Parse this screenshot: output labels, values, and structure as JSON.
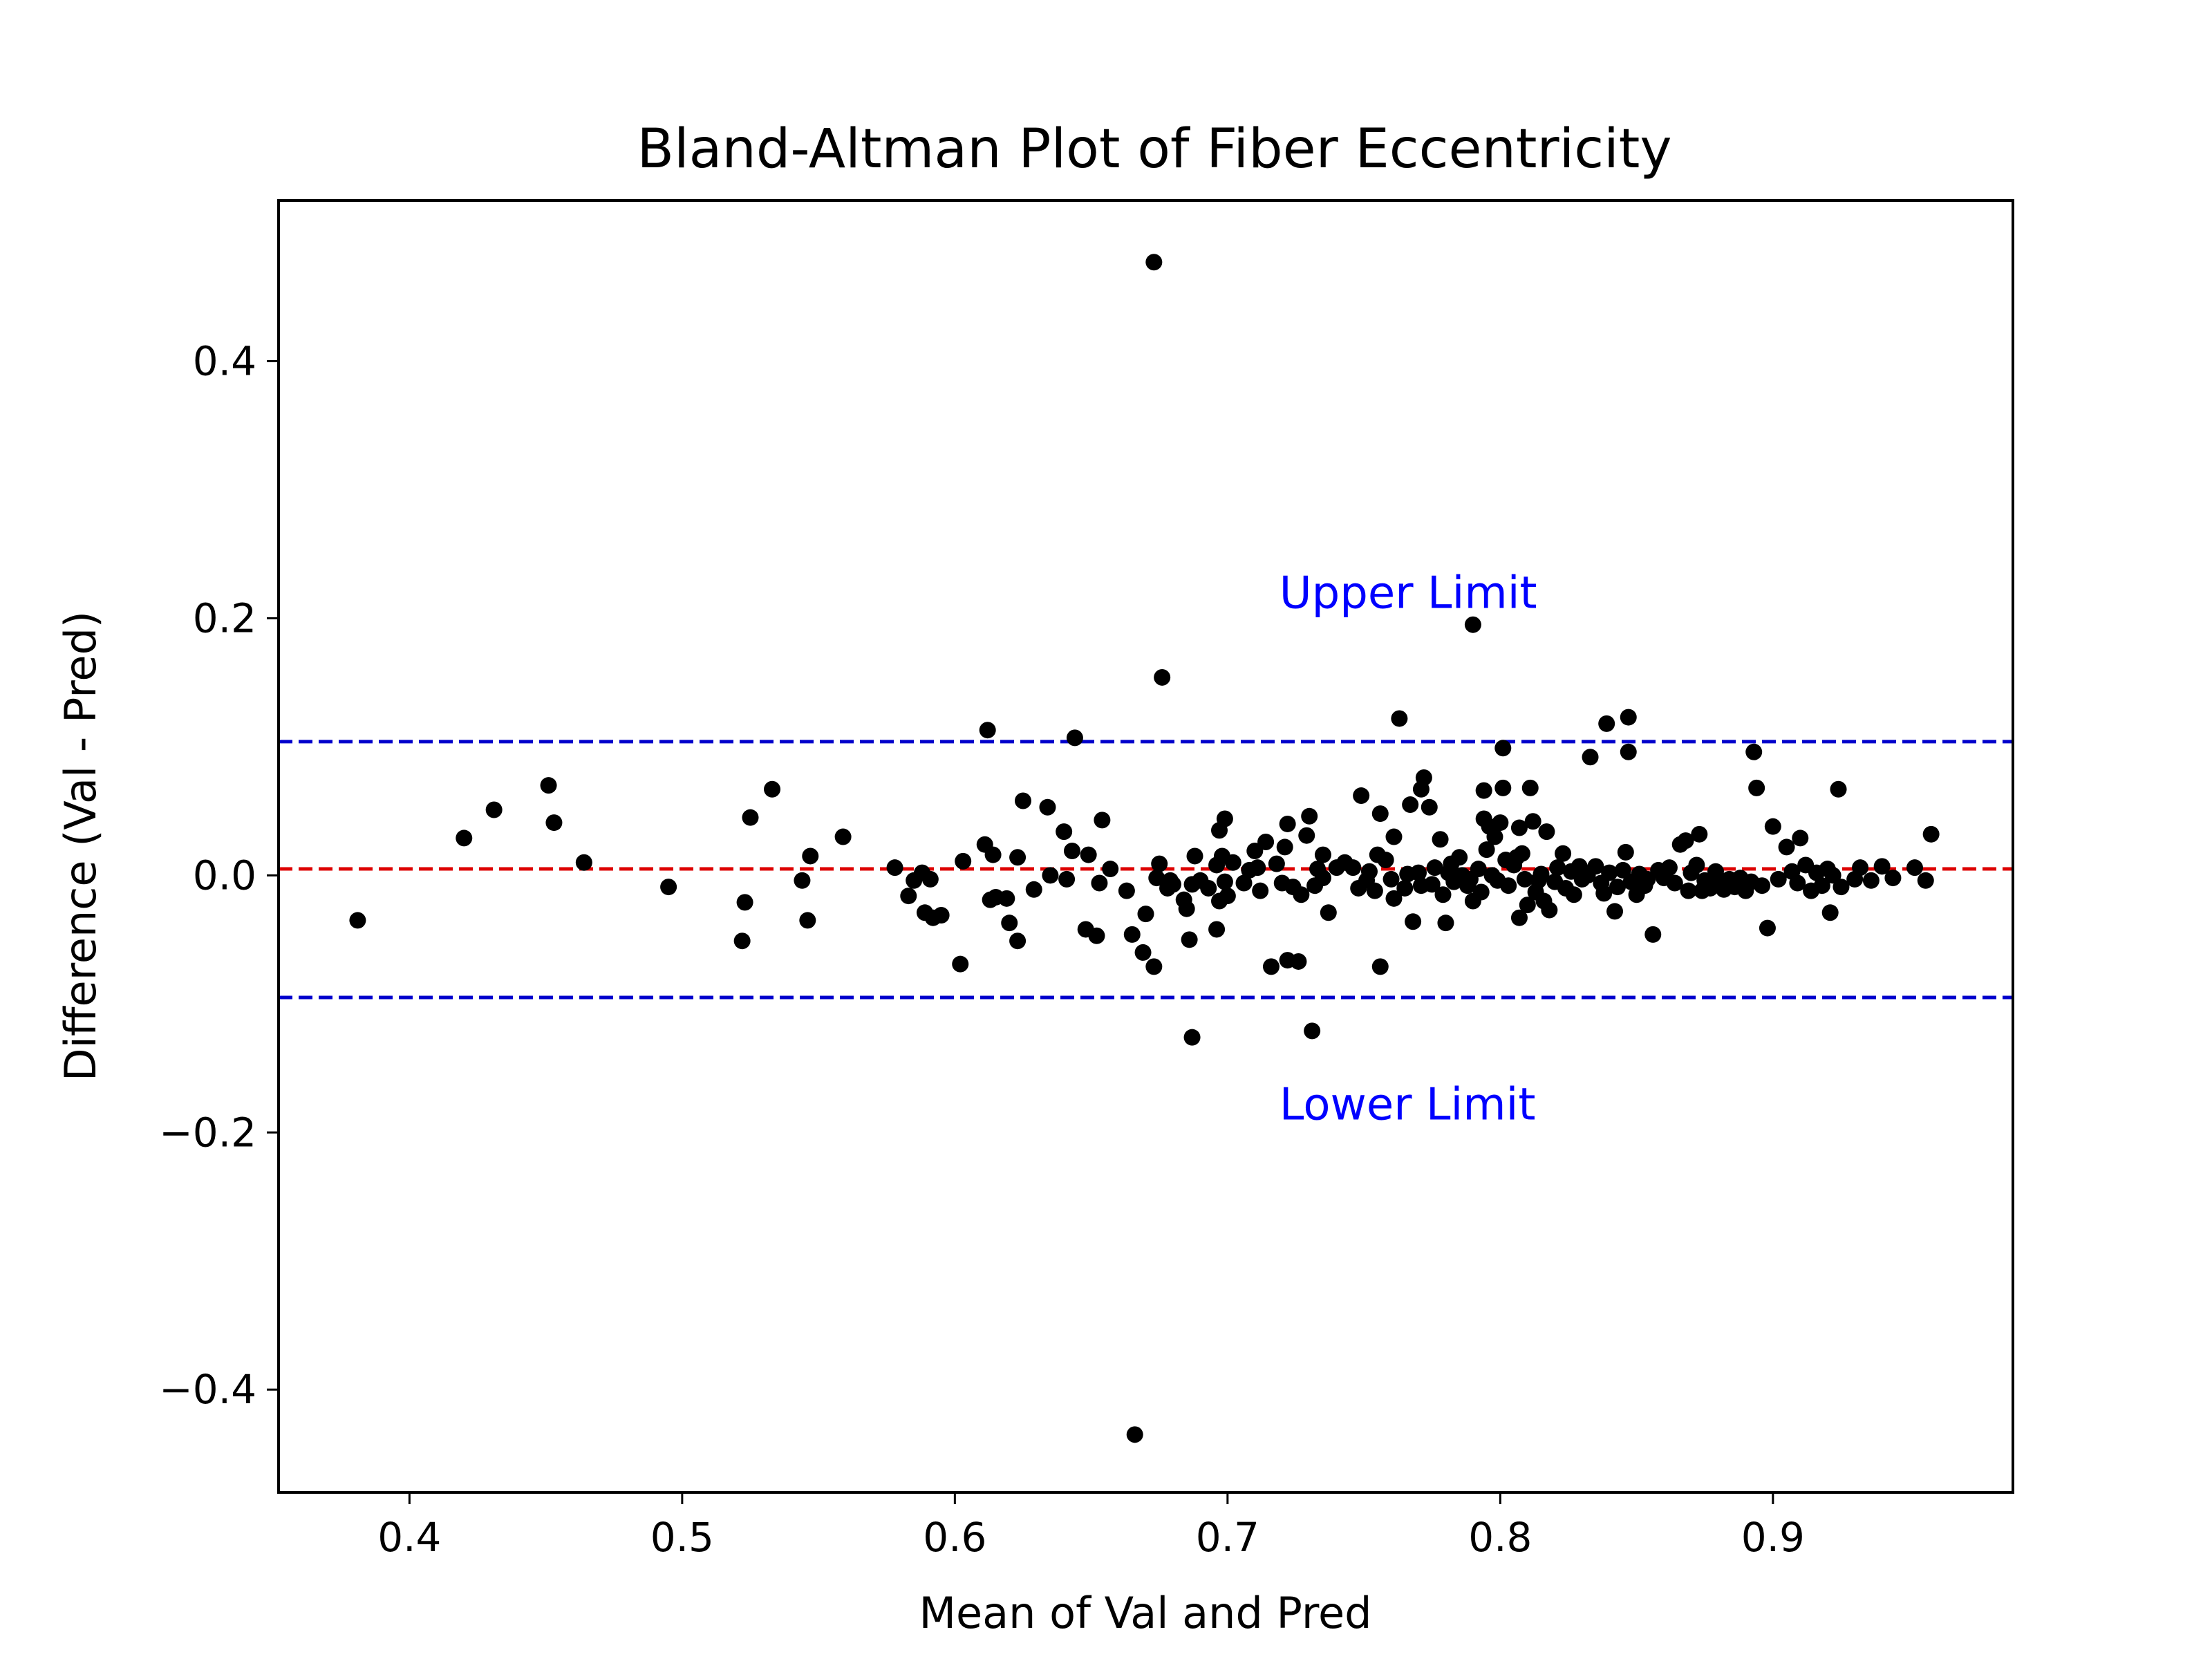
{
  "chart_data": {
    "type": "scatter",
    "title": "Bland-Altman Plot of Fiber Eccentricity",
    "xlabel": "Mean of Val and Pred",
    "ylabel": "Difference (Val - Pred)",
    "xlim": [
      0.352,
      0.988
    ],
    "ylim": [
      -0.48,
      0.525
    ],
    "xticks": [
      0.4,
      0.5,
      0.6,
      0.7,
      0.8,
      0.9
    ],
    "xtick_labels": [
      "0.4",
      "0.5",
      "0.6",
      "0.7",
      "0.8",
      "0.9"
    ],
    "yticks": [
      -0.4,
      -0.2,
      0.0,
      0.2,
      0.4
    ],
    "ytick_labels": [
      "−0.4",
      "−0.2",
      "0.0",
      "0.2",
      "0.4"
    ],
    "grid": false,
    "legend": "none",
    "reference_lines": [
      {
        "label": "Upper Limit",
        "y": 0.104,
        "color": "#0000cc",
        "style": "dashed"
      },
      {
        "label": "",
        "y": 0.005,
        "color": "#dd0000",
        "style": "dashed"
      },
      {
        "label": "Lower Limit",
        "y": -0.095,
        "color": "#0000cc",
        "style": "dashed"
      }
    ],
    "annotations": [
      {
        "text": "Upper Limit",
        "x": 0.719,
        "y": 0.208,
        "color": "#0000ff"
      },
      {
        "text": "Lower Limit",
        "x": 0.719,
        "y": -0.19,
        "color": "#0000ff"
      }
    ],
    "point_color": "#000000",
    "series": [
      {
        "points": [
          [
            0.381,
            -0.035
          ],
          [
            0.42,
            0.029
          ],
          [
            0.431,
            0.051
          ],
          [
            0.451,
            0.07
          ],
          [
            0.453,
            0.041
          ],
          [
            0.464,
            0.01
          ],
          [
            0.495,
            -0.009
          ],
          [
            0.522,
            -0.051
          ],
          [
            0.523,
            -0.021
          ],
          [
            0.525,
            0.045
          ],
          [
            0.533,
            0.067
          ],
          [
            0.544,
            -0.004
          ],
          [
            0.546,
            -0.035
          ],
          [
            0.547,
            0.015
          ],
          [
            0.559,
            0.03
          ],
          [
            0.578,
            0.006
          ],
          [
            0.583,
            -0.016
          ],
          [
            0.585,
            -0.004
          ],
          [
            0.588,
            0.002
          ],
          [
            0.589,
            -0.029
          ],
          [
            0.591,
            -0.003
          ],
          [
            0.592,
            -0.033
          ],
          [
            0.595,
            -0.031
          ],
          [
            0.602,
            -0.069
          ],
          [
            0.603,
            0.011
          ],
          [
            0.611,
            0.024
          ],
          [
            0.612,
            0.113
          ],
          [
            0.613,
            -0.019
          ],
          [
            0.614,
            0.016
          ],
          [
            0.615,
            -0.017
          ],
          [
            0.619,
            -0.018
          ],
          [
            0.62,
            -0.037
          ],
          [
            0.623,
            -0.051
          ],
          [
            0.623,
            0.014
          ],
          [
            0.625,
            0.058
          ],
          [
            0.629,
            -0.011
          ],
          [
            0.634,
            0.053
          ],
          [
            0.635,
            0.0
          ],
          [
            0.64,
            0.034
          ],
          [
            0.641,
            -0.003
          ],
          [
            0.643,
            0.019
          ],
          [
            0.644,
            0.107
          ],
          [
            0.648,
            -0.042
          ],
          [
            0.649,
            0.016
          ],
          [
            0.652,
            -0.047
          ],
          [
            0.653,
            -0.006
          ],
          [
            0.654,
            0.043
          ],
          [
            0.657,
            0.005
          ],
          [
            0.663,
            -0.012
          ],
          [
            0.665,
            -0.046
          ],
          [
            0.666,
            -0.435
          ],
          [
            0.669,
            -0.06
          ],
          [
            0.67,
            -0.03
          ],
          [
            0.673,
            -0.071
          ],
          [
            0.673,
            0.477
          ],
          [
            0.674,
            -0.002
          ],
          [
            0.675,
            0.009
          ],
          [
            0.676,
            0.154
          ],
          [
            0.678,
            -0.01
          ],
          [
            0.679,
            -0.004
          ],
          [
            0.68,
            -0.007
          ],
          [
            0.684,
            -0.019
          ],
          [
            0.685,
            -0.026
          ],
          [
            0.686,
            -0.05
          ],
          [
            0.687,
            -0.007
          ],
          [
            0.687,
            -0.126
          ],
          [
            0.688,
            0.015
          ],
          [
            0.69,
            -0.004
          ],
          [
            0.693,
            -0.01
          ],
          [
            0.696,
            0.008
          ],
          [
            0.696,
            -0.042
          ],
          [
            0.697,
            0.035
          ],
          [
            0.697,
            -0.02
          ],
          [
            0.698,
            0.015
          ],
          [
            0.699,
            -0.005
          ],
          [
            0.699,
            0.044
          ],
          [
            0.7,
            -0.016
          ],
          [
            0.702,
            0.01
          ],
          [
            0.706,
            -0.006
          ],
          [
            0.708,
            0.004
          ],
          [
            0.71,
            0.019
          ],
          [
            0.711,
            0.006
          ],
          [
            0.712,
            -0.012
          ],
          [
            0.714,
            0.026
          ],
          [
            0.716,
            -0.071
          ],
          [
            0.718,
            0.009
          ],
          [
            0.72,
            -0.006
          ],
          [
            0.721,
            0.022
          ],
          [
            0.722,
            -0.066
          ],
          [
            0.722,
            0.04
          ],
          [
            0.724,
            -0.009
          ],
          [
            0.726,
            -0.067
          ],
          [
            0.727,
            -0.015
          ],
          [
            0.729,
            0.031
          ],
          [
            0.73,
            0.046
          ],
          [
            0.731,
            -0.121
          ],
          [
            0.732,
            -0.008
          ],
          [
            0.733,
            0.005
          ],
          [
            0.735,
            -0.002
          ],
          [
            0.735,
            0.016
          ],
          [
            0.737,
            -0.029
          ],
          [
            0.74,
            0.006
          ],
          [
            0.743,
            0.01
          ],
          [
            0.746,
            0.006
          ],
          [
            0.748,
            -0.01
          ],
          [
            0.749,
            0.062
          ],
          [
            0.751,
            -0.004
          ],
          [
            0.752,
            0.003
          ],
          [
            0.754,
            -0.012
          ],
          [
            0.755,
            0.016
          ],
          [
            0.756,
            -0.071
          ],
          [
            0.756,
            0.048
          ],
          [
            0.758,
            0.012
          ],
          [
            0.76,
            -0.003
          ],
          [
            0.761,
            0.03
          ],
          [
            0.761,
            -0.018
          ],
          [
            0.763,
            0.122
          ],
          [
            0.765,
            -0.01
          ],
          [
            0.766,
            0.001
          ],
          [
            0.767,
            0.055
          ],
          [
            0.768,
            -0.036
          ],
          [
            0.77,
            0.002
          ],
          [
            0.771,
            -0.008
          ],
          [
            0.771,
            0.067
          ],
          [
            0.772,
            0.076
          ],
          [
            0.774,
            0.053
          ],
          [
            0.775,
            -0.007
          ],
          [
            0.776,
            0.006
          ],
          [
            0.778,
            0.028
          ],
          [
            0.779,
            -0.015
          ],
          [
            0.78,
            -0.037
          ],
          [
            0.781,
            0.002
          ],
          [
            0.782,
            0.009
          ],
          [
            0.783,
            -0.005
          ],
          [
            0.785,
            0.014
          ],
          [
            0.786,
            0.0
          ],
          [
            0.788,
            -0.008
          ],
          [
            0.789,
            -0.003
          ],
          [
            0.79,
            -0.02
          ],
          [
            0.79,
            0.195
          ],
          [
            0.792,
            0.005
          ],
          [
            0.793,
            -0.013
          ],
          [
            0.794,
            0.044
          ],
          [
            0.794,
            0.066
          ],
          [
            0.795,
            0.02
          ],
          [
            0.796,
            0.038
          ],
          [
            0.797,
            0.0
          ],
          [
            0.798,
            0.03
          ],
          [
            0.799,
            -0.004
          ],
          [
            0.8,
            0.041
          ],
          [
            0.801,
            0.068
          ],
          [
            0.801,
            0.099
          ],
          [
            0.802,
            0.012
          ],
          [
            0.803,
            -0.008
          ],
          [
            0.805,
            0.008
          ],
          [
            0.806,
            0.014
          ],
          [
            0.807,
            -0.033
          ],
          [
            0.807,
            0.037
          ],
          [
            0.808,
            0.017
          ],
          [
            0.809,
            -0.003
          ],
          [
            0.81,
            -0.023
          ],
          [
            0.811,
            0.068
          ],
          [
            0.812,
            0.042
          ],
          [
            0.813,
            -0.013
          ],
          [
            0.814,
            -0.004
          ],
          [
            0.815,
            0.001
          ],
          [
            0.816,
            -0.02
          ],
          [
            0.817,
            0.034
          ],
          [
            0.818,
            -0.027
          ],
          [
            0.82,
            -0.005
          ],
          [
            0.821,
            0.006
          ],
          [
            0.823,
            0.017
          ],
          [
            0.824,
            -0.01
          ],
          [
            0.826,
            0.003
          ],
          [
            0.827,
            -0.015
          ],
          [
            0.829,
            0.007
          ],
          [
            0.83,
            -0.003
          ],
          [
            0.832,
            0.0
          ],
          [
            0.833,
            0.092
          ],
          [
            0.835,
            0.007
          ],
          [
            0.837,
            -0.006
          ],
          [
            0.838,
            -0.014
          ],
          [
            0.839,
            0.118
          ],
          [
            0.84,
            0.002
          ],
          [
            0.842,
            -0.028
          ],
          [
            0.843,
            -0.009
          ],
          [
            0.845,
            0.004
          ],
          [
            0.846,
            0.018
          ],
          [
            0.847,
            0.096
          ],
          [
            0.847,
            0.123
          ],
          [
            0.848,
            -0.005
          ],
          [
            0.85,
            -0.015
          ],
          [
            0.851,
            0.001
          ],
          [
            0.853,
            -0.008
          ],
          [
            0.854,
            -0.003
          ],
          [
            0.856,
            -0.046
          ],
          [
            0.858,
            0.004
          ],
          [
            0.86,
            -0.002
          ],
          [
            0.862,
            0.006
          ],
          [
            0.864,
            -0.006
          ],
          [
            0.866,
            0.024
          ],
          [
            0.868,
            0.027
          ],
          [
            0.869,
            -0.012
          ],
          [
            0.87,
            0.002
          ],
          [
            0.872,
            0.008
          ],
          [
            0.873,
            0.032
          ],
          [
            0.874,
            -0.012
          ],
          [
            0.875,
            -0.004
          ],
          [
            0.877,
            -0.01
          ],
          [
            0.879,
            0.003
          ],
          [
            0.88,
            -0.007
          ],
          [
            0.882,
            -0.011
          ],
          [
            0.884,
            -0.003
          ],
          [
            0.886,
            -0.009
          ],
          [
            0.888,
            -0.002
          ],
          [
            0.89,
            -0.012
          ],
          [
            0.892,
            -0.005
          ],
          [
            0.893,
            0.096
          ],
          [
            0.894,
            0.068
          ],
          [
            0.896,
            -0.008
          ],
          [
            0.898,
            -0.041
          ],
          [
            0.9,
            0.038
          ],
          [
            0.902,
            -0.003
          ],
          [
            0.905,
            0.022
          ],
          [
            0.907,
            0.003
          ],
          [
            0.909,
            -0.006
          ],
          [
            0.91,
            0.029
          ],
          [
            0.912,
            0.008
          ],
          [
            0.914,
            -0.012
          ],
          [
            0.916,
            0.002
          ],
          [
            0.918,
            -0.008
          ],
          [
            0.92,
            0.005
          ],
          [
            0.921,
            -0.029
          ],
          [
            0.922,
            0.0
          ],
          [
            0.924,
            0.067
          ],
          [
            0.925,
            -0.009
          ],
          [
            0.93,
            -0.003
          ],
          [
            0.932,
            0.006
          ],
          [
            0.936,
            -0.004
          ],
          [
            0.94,
            0.007
          ],
          [
            0.944,
            -0.002
          ],
          [
            0.952,
            0.006
          ],
          [
            0.956,
            -0.004
          ],
          [
            0.958,
            0.032
          ]
        ]
      }
    ]
  }
}
